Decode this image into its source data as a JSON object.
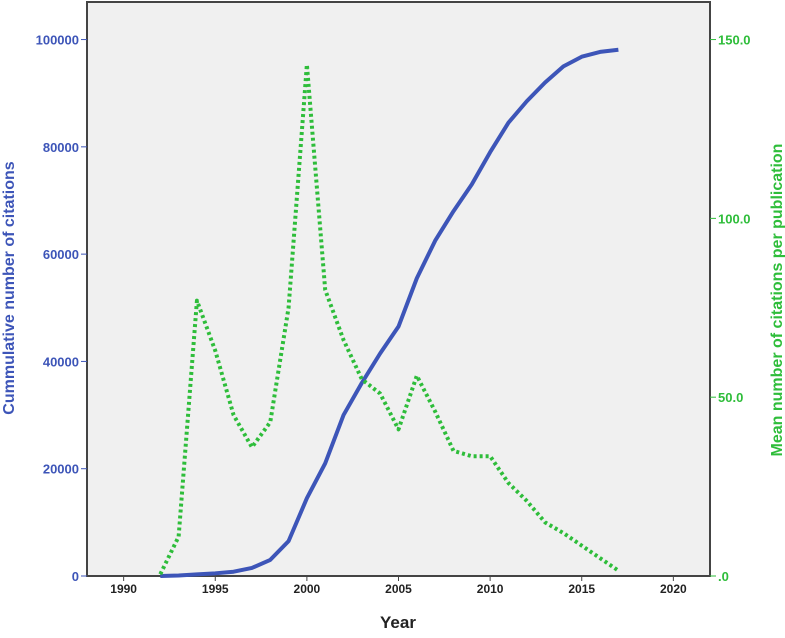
{
  "chart_data": {
    "type": "line",
    "title": "",
    "xlabel": "Year",
    "ylabel": "Cummulative number of citations",
    "y2label": "Mean number of citations per publication",
    "xlim": [
      1988,
      2022
    ],
    "ylim": [
      0,
      107000
    ],
    "y2lim": [
      0,
      160.5
    ],
    "xticks": [
      1990,
      1995,
      2000,
      2005,
      2010,
      2015,
      2020
    ],
    "yticks": [
      "0",
      "20000",
      "40000",
      "60000",
      "80000",
      "100000"
    ],
    "y2ticks": [
      ".0",
      "50.0",
      "100.0",
      "150.0"
    ],
    "grid": false,
    "colors": {
      "left": "#3d55b8",
      "right": "#2ebd3a",
      "plot_bg": "#f0f0f0"
    },
    "x": [
      1992,
      1993,
      1994,
      1995,
      1996,
      1997,
      1998,
      1999,
      2000,
      2001,
      2002,
      2003,
      2004,
      2005,
      2006,
      2007,
      2008,
      2009,
      2010,
      2011,
      2012,
      2013,
      2014,
      2015,
      2016,
      2017
    ],
    "series": [
      {
        "axis": "left",
        "style": "solid",
        "values": [
          0,
          100,
          300,
          500,
          800,
          1500,
          3000,
          6500,
          14500,
          21000,
          30000,
          36000,
          41500,
          46500,
          55500,
          62500,
          68000,
          73000,
          79000,
          84500,
          88500,
          92000,
          95000,
          96800,
          97700,
          98100
        ]
      },
      {
        "axis": "right",
        "style": "dotted",
        "values": [
          0.5,
          11,
          77,
          63,
          45,
          36,
          43,
          75,
          143,
          80,
          66,
          55,
          51,
          41,
          56,
          46,
          35,
          33.5,
          33.5,
          26,
          21,
          15,
          12,
          8.5,
          5,
          1.5
        ]
      }
    ]
  }
}
